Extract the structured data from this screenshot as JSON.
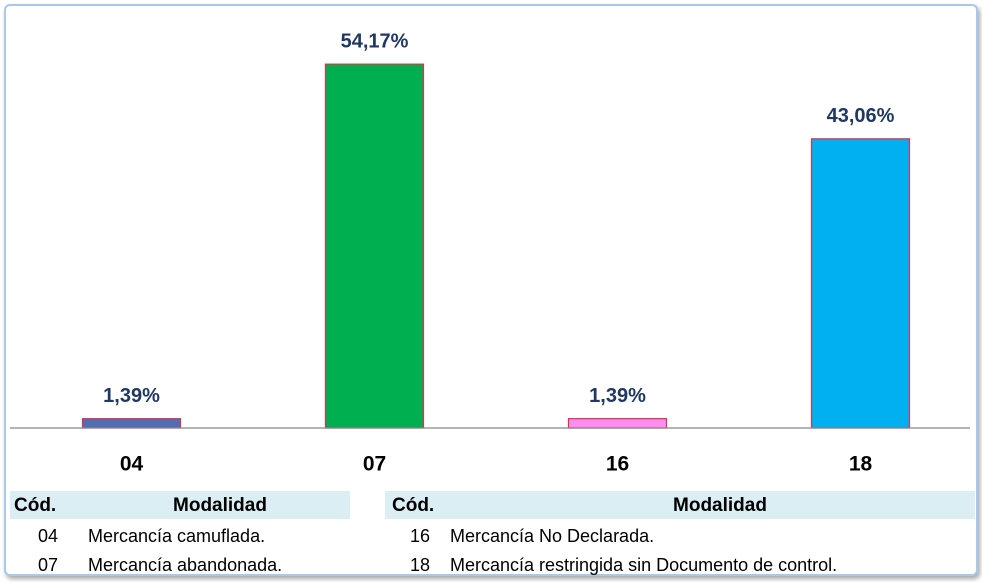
{
  "chart_data": {
    "type": "bar",
    "categories": [
      "04",
      "07",
      "16",
      "18"
    ],
    "values": [
      1.39,
      54.17,
      1.39,
      43.06
    ],
    "value_labels": [
      "1,39%",
      "54,17%",
      "1,39%",
      "43,06%"
    ],
    "colors": [
      "#4f6fb5",
      "#00b050",
      "#ff8cf0",
      "#00b0f0"
    ],
    "ylim": [
      0,
      60
    ],
    "tables": [
      {
        "columns": [
          "Cód.",
          "Modalidad"
        ],
        "rows": [
          [
            "04",
            "Mercancía camuflada."
          ],
          [
            "07",
            "Mercancía abandonada."
          ]
        ]
      },
      {
        "columns": [
          "Cód.",
          "Modalidad"
        ],
        "rows": [
          [
            "16",
            "Mercancía No Declarada."
          ],
          [
            "18",
            "Mercancía restringida sin Documento de control."
          ]
        ]
      }
    ]
  }
}
